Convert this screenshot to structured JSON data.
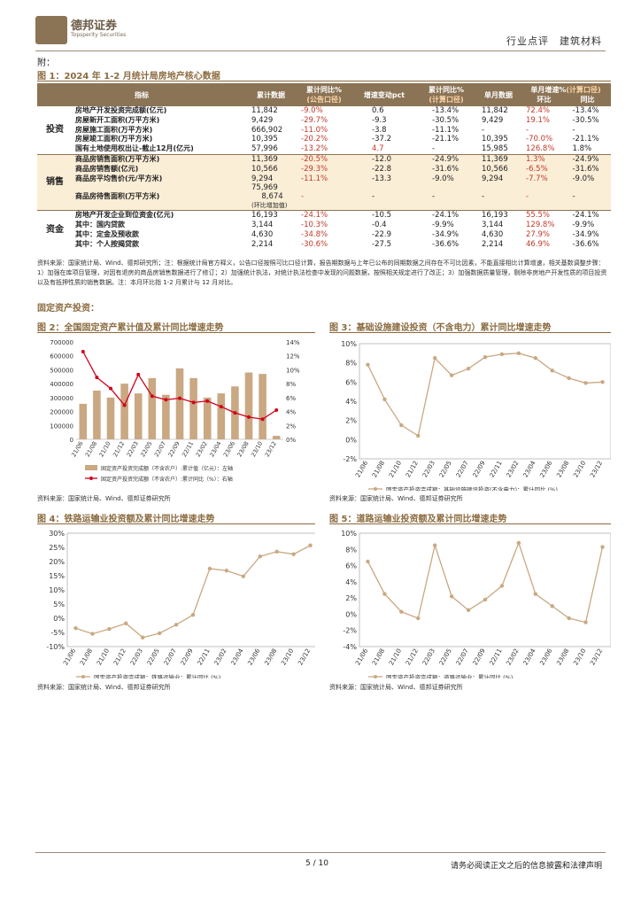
{
  "header": {
    "logo_text": "德邦证券",
    "logo_sub": "Topsperity Securities",
    "right_text": "行业点评　建筑材料"
  },
  "appendix": "附：",
  "fig1_title": "图 1：2024 年 1-2 月统计局房地产核心数据",
  "table": {
    "headers": {
      "indicator": "指标",
      "cum_value": "累计数据",
      "cum_yoy": "累计同比%",
      "cum_yoy_sub": "(公告口径)",
      "change": "增速变动pct",
      "cum_yoy_calc": "累计同比%",
      "cum_yoy_calc_sub": "(计算口径)",
      "single": "单月数据",
      "single_growth": "单月增速%",
      "single_growth_sub": "(计算口径)",
      "mom": "环比",
      "yoy": "同比"
    },
    "groups": {
      "invest": "投资",
      "sales": "销售",
      "funds": "资金"
    },
    "rows": [
      {
        "name": "房地产开发投资完成额(亿元)",
        "v": "11,842",
        "y": "-9.0%",
        "c": "0.6",
        "yc": "-13.4%",
        "s": "11,842",
        "m": "72.4%",
        "sy": "-13.4%"
      },
      {
        "name": "房屋新开工面积(万平方米)",
        "v": "9,429",
        "y": "-29.7%",
        "c": "-9.3",
        "yc": "-30.5%",
        "s": "9,429",
        "m": "19.1%",
        "sy": "-30.5%"
      },
      {
        "name": "房屋施工面积(万平方米)",
        "v": "666,902",
        "y": "-11.0%",
        "c": "-3.8",
        "yc": "-11.1%",
        "s": "-",
        "m": "-",
        "sy": "-"
      },
      {
        "name": "房屋竣工面积(万平方米)",
        "v": "10,395",
        "y": "-20.2%",
        "c": "-37.2",
        "yc": "-21.1%",
        "s": "10,395",
        "m": "-70.0%",
        "sy": "-21.1%"
      },
      {
        "name": "国有土地使用权出让-截止12月(亿元)",
        "v": "57,996",
        "y": "-13.2%",
        "c": "4.7",
        "yc": "-",
        "s": "15,985",
        "m": "126.8%",
        "sy": "1.8%"
      },
      {
        "name": "商品房销售面积(万平方米)",
        "v": "11,369",
        "y": "-20.5%",
        "c": "-12.0",
        "yc": "-24.9%",
        "s": "11,369",
        "m": "1.3%",
        "sy": "-24.9%"
      },
      {
        "name": "商品房销售额(亿元)",
        "v": "10,566",
        "y": "-29.3%",
        "c": "-22.8",
        "yc": "-31.6%",
        "s": "10,566",
        "m": "-6.5%",
        "sy": "-31.6%"
      },
      {
        "name": "商品房平均售价(元/平方米)",
        "v": "9,294",
        "y": "-11.1%",
        "c": "-13.3",
        "yc": "-9.0%",
        "s": "9,294",
        "m": "-7.7%",
        "sy": "-9.0%"
      },
      {
        "name": "商品房待售面积(万平方米)",
        "v": "75,969",
        "v2": "8,674",
        "v3": "(环比增加值)",
        "y": "-",
        "c": "-",
        "yc": "-",
        "s": "-",
        "m": "-",
        "sy": "-"
      },
      {
        "name": "房地产开发企业到位资金(亿元)",
        "v": "16,193",
        "y": "-24.1%",
        "c": "-10.5",
        "yc": "-24.1%",
        "s": "16,193",
        "m": "55.5%",
        "sy": "-24.1%"
      },
      {
        "name": "其中：国内贷款",
        "v": "3,144",
        "y": "-10.3%",
        "c": "-0.4",
        "yc": "-9.9%",
        "s": "3,144",
        "m": "129.8%",
        "sy": "-9.9%"
      },
      {
        "name": "其中：定金及预收款",
        "v": "4,630",
        "y": "-34.8%",
        "c": "-22.9",
        "yc": "-34.9%",
        "s": "4,630",
        "m": "27.9%",
        "sy": "-34.9%"
      },
      {
        "name": "其中：个人按揭贷款",
        "v": "2,214",
        "y": "-30.6%",
        "c": "-27.5",
        "yc": "-36.6%",
        "s": "2,214",
        "m": "46.9%",
        "sy": "-36.6%"
      }
    ]
  },
  "note": "资料来源：国家统计局、Wind、德邦研究所；注：根据统计局官方释义，公告口径按照可比口径计算，报告期数据与上年已公布的同期数据之间存在不可比因素，不能直接相比计算增速，相关基数调整步骤：1）加强在库项目管理，对因有退房的商品房销售数据进行了修订；2）加强统计执法，对统计执法检查中发现的问题数据，按照相关规定进行了改正；3）加强数据质量管理，剔除非房地产开发性质的项目投资以及有抵押性质的销售数据。注：本月环比指 1-2 月累计与 12 月对比。",
  "section": "固定资产投资：",
  "fig2_title": "图 2：全国固定资产累计值及累计同比增速走势",
  "fig3_title": "图 3：基础设施建设投资（不含电力）累计同比增速走势",
  "fig4_title": "图 4：铁路运输业投资额及累计同比增速走势",
  "fig5_title": "图 5：道路运输业投资额及累计同比增速走势",
  "source": "资料来源：国家统计局、Wind、德邦证券研究所",
  "footer": {
    "page": "5 / 10",
    "disclaimer": "请务必阅读正文之后的信息披露和法律声明"
  },
  "chart_data": [
    {
      "type": "bar",
      "title": "图 2：全国固定资产累计值及累计同比增速走势",
      "categories": [
        "21/06",
        "21/08",
        "21/10",
        "21/12",
        "22/03",
        "22/05",
        "22/07",
        "22/09",
        "22/11",
        "23/02",
        "23/04",
        "23/06",
        "23/08",
        "23/10",
        "23/12"
      ],
      "ylim_left": [
        0,
        700000
      ],
      "ylim_right": [
        0,
        14
      ],
      "yticks_left": [
        "0",
        "100000",
        "200000",
        "300000",
        "400000",
        "500000",
        "600000",
        "700000"
      ],
      "yticks_right": [
        "0%",
        "2%",
        "4%",
        "6%",
        "8%",
        "10%",
        "12%",
        "14%"
      ],
      "series": [
        {
          "name": "固定资产投资完成额（不含农户）:累计值（亿元）：左轴",
          "axis": "left",
          "values": [
            255000,
            350000,
            300000,
            400000,
            330000,
            440000,
            320000,
            510000,
            440000,
            300000,
            330000,
            380000,
            480000,
            470000,
            25000
          ]
        },
        {
          "name": "固定资产投资完成额（不含农户）:累计同比（%）：右轴",
          "axis": "right",
          "values": [
            12.6,
            8.9,
            7.3,
            4.9,
            9.3,
            6.2,
            5.7,
            5.9,
            5.3,
            5.5,
            4.7,
            3.8,
            3.2,
            2.9,
            4.2
          ]
        }
      ]
    },
    {
      "type": "line",
      "title": "图 3：基础设施建设投资（不含电力）累计同比增速走势",
      "categories": [
        "21/06",
        "21/08",
        "21/10",
        "21/12",
        "22/03",
        "22/05",
        "22/07",
        "22/09",
        "22/11",
        "23/02",
        "23/04",
        "23/06",
        "23/08",
        "23/10",
        "23/12"
      ],
      "ylim": [
        -2,
        10
      ],
      "yticks": [
        "-2%",
        "0%",
        "2%",
        "4%",
        "6%",
        "8%",
        "10%"
      ],
      "series": [
        {
          "name": "固定资产投资完成额：基础设施建设投资(不含电力)：累计同比 (%)",
          "values": [
            7.8,
            4.2,
            1.5,
            0.4,
            8.5,
            6.7,
            7.4,
            8.6,
            8.9,
            9.0,
            8.5,
            7.2,
            6.4,
            5.9,
            6.0
          ]
        }
      ]
    },
    {
      "type": "line",
      "title": "图 4：铁路运输业投资额及累计同比增速走势",
      "categories": [
        "21/06",
        "21/08",
        "21/10",
        "21/12",
        "22/03",
        "22/05",
        "22/07",
        "22/09",
        "22/11",
        "23/02",
        "23/04",
        "23/06",
        "23/08",
        "23/10",
        "23/12"
      ],
      "ylim": [
        -10,
        30
      ],
      "yticks": [
        "-10%",
        "-5%",
        "0%",
        "5%",
        "10%",
        "15%",
        "20%",
        "25%",
        "30%"
      ],
      "series": [
        {
          "name": "固定资产投资完成额：铁路运输业：累计同比 (%)",
          "values": [
            -3.5,
            -5.5,
            -3.8,
            -1.8,
            -6.8,
            -5.3,
            -2.3,
            1.2,
            17.5,
            16.8,
            14.8,
            21.8,
            23.5,
            22.6,
            25.7
          ]
        }
      ]
    },
    {
      "type": "line",
      "title": "图 5：道路运输业投资额及累计同比增速走势",
      "categories": [
        "21/06",
        "21/08",
        "21/10",
        "21/12",
        "22/03",
        "22/05",
        "22/07",
        "22/09",
        "22/11",
        "23/02",
        "23/04",
        "23/06",
        "23/08",
        "23/10",
        "23/12"
      ],
      "ylim": [
        -4,
        10
      ],
      "yticks": [
        "-4%",
        "-2%",
        "0%",
        "2%",
        "4%",
        "6%",
        "8%",
        "10%"
      ],
      "series": [
        {
          "name": "固定资产投资完成额：道路运输业：累计同比 (%)",
          "values": [
            6.5,
            2.5,
            0.3,
            -0.5,
            8.5,
            2.2,
            0.5,
            1.8,
            3.5,
            8.8,
            2.5,
            1.0,
            -0.5,
            -1.0,
            8.3
          ]
        }
      ]
    }
  ]
}
